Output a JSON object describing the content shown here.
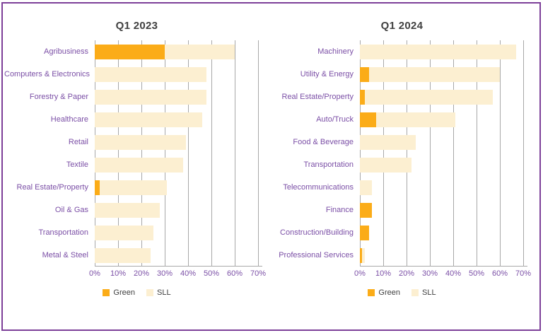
{
  "frame": {
    "border_color": "#7D3F98"
  },
  "styles": {
    "title_color": "#404040",
    "category_label_color": "#7B4FA6",
    "tick_label_color": "#7B4FA6",
    "grid_color": "#A8A8A8",
    "legend_text_color": "#404040",
    "green_color": "#FBAC18",
    "sll_color": "#FCEFD1"
  },
  "chart_data": [
    {
      "type": "bar",
      "orientation": "horizontal",
      "stacked": true,
      "title": "Q1 2023",
      "categories": [
        "Agribusiness",
        "Computers & Electronics",
        "Forestry & Paper",
        "Healthcare",
        "Retail",
        "Textile",
        "Real Estate/Property",
        "Oil & Gas",
        "Transportation",
        "Metal & Steel"
      ],
      "series": [
        {
          "name": "Green",
          "color": "#FBAC18",
          "values": [
            30,
            0,
            0,
            0,
            0,
            0,
            2,
            0,
            0,
            0
          ]
        },
        {
          "name": "SLL",
          "color": "#FCEFD1",
          "values": [
            30,
            48,
            48,
            46,
            39,
            38,
            29,
            28,
            25,
            24
          ]
        }
      ],
      "xlabel": "",
      "ylabel": "",
      "xlim": [
        0,
        70
      ],
      "ticks": [
        "0%",
        "10%",
        "20%",
        "30%",
        "40%",
        "50%",
        "60%",
        "70%"
      ],
      "grid": true,
      "legend_position": "bottom"
    },
    {
      "type": "bar",
      "orientation": "horizontal",
      "stacked": true,
      "title": "Q1 2024",
      "categories": [
        "Machinery",
        "Utility & Energy",
        "Real Estate/Property",
        "Auto/Truck",
        "Food & Beverage",
        "Transportation",
        "Telecommunications",
        "Finance",
        "Construction/Building",
        "Professional Services"
      ],
      "series": [
        {
          "name": "Green",
          "color": "#FBAC18",
          "values": [
            0,
            4,
            2,
            7,
            0,
            0,
            0,
            5,
            4,
            1
          ]
        },
        {
          "name": "SLL",
          "color": "#FCEFD1",
          "values": [
            67,
            56,
            55,
            34,
            24,
            22,
            5,
            0,
            0,
            1
          ]
        }
      ],
      "xlabel": "",
      "ylabel": "",
      "xlim": [
        0,
        70
      ],
      "ticks": [
        "0%",
        "10%",
        "20%",
        "30%",
        "40%",
        "50%",
        "60%",
        "70%"
      ],
      "grid": true,
      "legend_position": "bottom"
    }
  ]
}
